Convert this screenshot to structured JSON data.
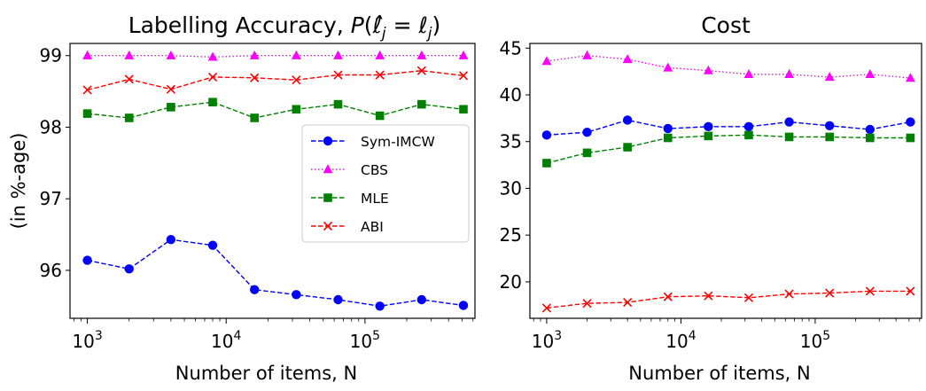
{
  "chart_data": [
    {
      "type": "line",
      "title": "Labelling Accuracy, P(ℓ̂ⱼ = ℓⱼ)",
      "xlabel": "Number of items, N",
      "ylabel": "(in %-age)",
      "x_scale": "log",
      "x_tick_labels": [
        "10",
        "10",
        "10"
      ],
      "x_tick_exponents": [
        "3",
        "4",
        "5"
      ],
      "x_ticks": [
        1000,
        10000,
        100000
      ],
      "y_ticks": [
        "96",
        "97",
        "98",
        "99"
      ],
      "y_tick_values": [
        96,
        97,
        98,
        99
      ],
      "ylim": [
        95.33,
        99.17
      ],
      "xlim": [
        750,
        620000
      ],
      "legend": "center-right",
      "grid": false,
      "x": [
        1000,
        2000,
        4000,
        8000,
        16000,
        32000,
        64000,
        128000,
        256000,
        512000
      ],
      "series": [
        {
          "name": "Sym-IMCW",
          "color": "#0000ff",
          "marker": "circle",
          "linestyle": "dashed",
          "values": [
            96.14,
            96.02,
            96.43,
            96.35,
            95.73,
            95.66,
            95.59,
            95.5,
            95.59,
            95.51
          ]
        },
        {
          "name": "CBS",
          "color": "#ff00ff",
          "marker": "triangle",
          "linestyle": "dotted",
          "values": [
            99.0,
            99.0,
            99.0,
            98.98,
            99.0,
            99.0,
            99.0,
            99.0,
            99.0,
            99.0
          ]
        },
        {
          "name": "MLE",
          "color": "#008000",
          "marker": "square",
          "linestyle": "dashed",
          "values": [
            98.19,
            98.13,
            98.28,
            98.35,
            98.13,
            98.25,
            98.32,
            98.16,
            98.32,
            98.25
          ]
        },
        {
          "name": "ABI",
          "color": "#ff0000",
          "marker": "x",
          "linestyle": "dashed",
          "values": [
            98.52,
            98.67,
            98.53,
            98.7,
            98.69,
            98.66,
            98.73,
            98.73,
            98.79,
            98.72
          ]
        }
      ]
    },
    {
      "type": "line",
      "title": "Cost",
      "xlabel": "Number of items, N",
      "ylabel": "",
      "x_scale": "log",
      "x_tick_labels": [
        "10",
        "10",
        "10"
      ],
      "x_tick_exponents": [
        "3",
        "4",
        "5"
      ],
      "x_ticks": [
        1000,
        10000,
        100000
      ],
      "y_ticks": [
        "20",
        "25",
        "30",
        "35",
        "40",
        "45"
      ],
      "y_tick_values": [
        20,
        25,
        30,
        35,
        40,
        45
      ],
      "ylim": [
        16.1,
        45.5
      ],
      "xlim": [
        750,
        620000
      ],
      "grid": false,
      "x": [
        1000,
        2000,
        4000,
        8000,
        16000,
        32000,
        64000,
        128000,
        256000,
        512000
      ],
      "series": [
        {
          "color": "#0000ff",
          "marker": "circle",
          "linestyle": "dashed",
          "values": [
            35.7,
            36.0,
            37.3,
            36.4,
            36.6,
            36.6,
            37.1,
            36.7,
            36.3,
            37.1
          ]
        },
        {
          "color": "#ff00ff",
          "marker": "triangle",
          "linestyle": "dotted",
          "values": [
            43.6,
            44.2,
            43.8,
            42.9,
            42.6,
            42.2,
            42.2,
            41.9,
            42.2,
            41.8
          ]
        },
        {
          "color": "#008000",
          "marker": "square",
          "linestyle": "dashed",
          "values": [
            32.7,
            33.8,
            34.4,
            35.4,
            35.6,
            35.7,
            35.5,
            35.5,
            35.4,
            35.4
          ]
        },
        {
          "color": "#ff0000",
          "marker": "x",
          "linestyle": "dashed",
          "values": [
            17.2,
            17.7,
            17.8,
            18.4,
            18.5,
            18.3,
            18.7,
            18.8,
            19.0,
            19.0
          ]
        }
      ]
    }
  ]
}
